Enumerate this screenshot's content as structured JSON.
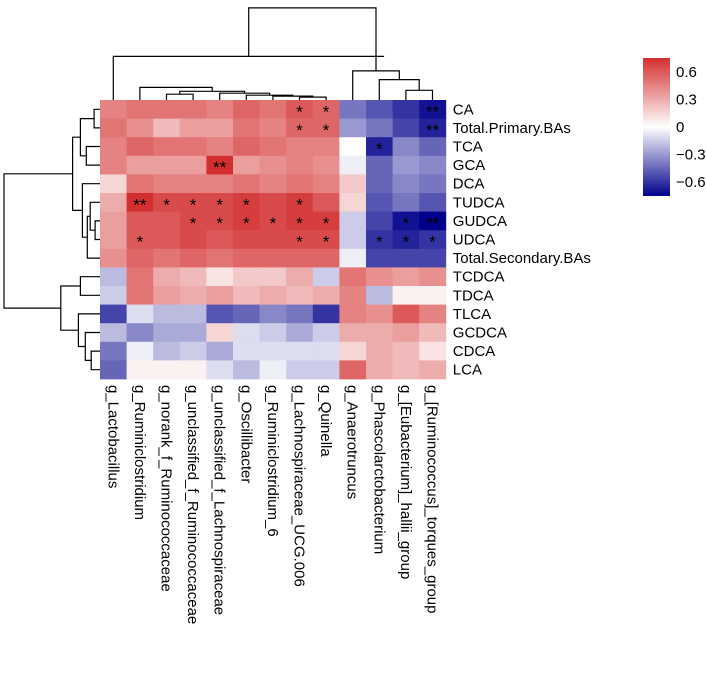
{
  "chart_data": {
    "type": "heatmap",
    "title": "",
    "rows": [
      "CA",
      "Total.Primary.BAs",
      "TCA",
      "GCA",
      "DCA",
      "TUDCA",
      "GUDCA",
      "UDCA",
      "Total.Secondary.BAs",
      "TCDCA",
      "TDCA",
      "TLCA",
      "GCDCA",
      "CDCA",
      "LCA"
    ],
    "columns": [
      "g_Lactobacillus",
      "g_Ruminiclostridium",
      "g_norank_f_Ruminococcaceae",
      "g_unclassified_f_Ruminococcaceae",
      "g_unclassified_f_Lachnospiraceae",
      "g_Oscillibacter",
      "g_Ruminiclostridium_6",
      "g_Lachnospiraceae_UCG.006",
      "g_Quinella",
      "g_Anaerotruncus",
      "g_Phascolarctobacterium",
      "g_[Eubacterium]_hallii_group",
      "g_[Ruminococcus]_torques_group"
    ],
    "values": [
      [
        0.45,
        0.5,
        0.5,
        0.5,
        0.45,
        0.55,
        0.5,
        0.6,
        0.55,
        -0.4,
        -0.5,
        -0.6,
        -0.7
      ],
      [
        0.5,
        0.4,
        0.25,
        0.35,
        0.35,
        0.5,
        0.45,
        0.55,
        0.55,
        -0.3,
        -0.4,
        -0.55,
        -0.65
      ],
      [
        0.45,
        0.55,
        0.5,
        0.5,
        0.45,
        0.55,
        0.5,
        0.45,
        0.45,
        0.0,
        -0.65,
        -0.35,
        -0.45
      ],
      [
        0.45,
        0.35,
        0.35,
        0.35,
        0.75,
        0.35,
        0.4,
        0.45,
        0.4,
        -0.05,
        -0.45,
        -0.3,
        -0.35
      ],
      [
        0.15,
        0.5,
        0.45,
        0.45,
        0.45,
        0.5,
        0.45,
        0.5,
        0.45,
        0.2,
        -0.45,
        -0.35,
        -0.4
      ],
      [
        0.3,
        0.75,
        0.65,
        0.65,
        0.65,
        0.7,
        0.65,
        0.7,
        0.6,
        0.15,
        -0.5,
        -0.4,
        -0.5
      ],
      [
        0.35,
        0.6,
        0.6,
        0.65,
        0.65,
        0.7,
        0.65,
        0.7,
        0.7,
        -0.15,
        -0.55,
        -0.7,
        -0.75
      ],
      [
        0.35,
        0.6,
        0.6,
        0.65,
        0.6,
        0.65,
        0.65,
        0.65,
        0.65,
        -0.15,
        -0.6,
        -0.65,
        -0.6
      ],
      [
        0.4,
        0.55,
        0.5,
        0.55,
        0.5,
        0.55,
        0.55,
        0.55,
        0.55,
        -0.05,
        -0.55,
        -0.55,
        -0.55
      ],
      [
        -0.2,
        0.5,
        0.3,
        0.25,
        0.1,
        0.2,
        0.2,
        0.3,
        -0.15,
        0.5,
        0.4,
        0.35,
        0.4
      ],
      [
        -0.15,
        0.5,
        0.35,
        0.3,
        0.35,
        0.25,
        0.3,
        0.25,
        0.3,
        0.45,
        -0.2,
        0.05,
        0.05
      ],
      [
        -0.55,
        -0.1,
        -0.2,
        -0.2,
        -0.5,
        -0.45,
        -0.35,
        -0.4,
        -0.6,
        0.45,
        0.4,
        0.6,
        0.45
      ],
      [
        -0.2,
        -0.35,
        -0.25,
        -0.25,
        0.15,
        -0.1,
        -0.15,
        -0.25,
        -0.15,
        0.3,
        0.3,
        0.35,
        0.25
      ],
      [
        -0.4,
        -0.05,
        -0.2,
        -0.15,
        -0.25,
        -0.1,
        -0.1,
        -0.1,
        -0.1,
        0.15,
        0.3,
        0.25,
        0.1
      ],
      [
        -0.45,
        0.05,
        0.05,
        0.05,
        -0.1,
        -0.2,
        -0.05,
        -0.15,
        -0.15,
        0.55,
        0.3,
        0.25,
        0.3
      ]
    ],
    "significance": [
      [
        "",
        "",
        "",
        "",
        "",
        "",
        "",
        "*",
        "*",
        "",
        "",
        "",
        "**"
      ],
      [
        "",
        "",
        "",
        "",
        "",
        "",
        "",
        "*",
        "*",
        "",
        "",
        "",
        "**"
      ],
      [
        "",
        "",
        "",
        "",
        "",
        "",
        "",
        "",
        "",
        "",
        "*",
        "",
        ""
      ],
      [
        "",
        "",
        "",
        "",
        "**",
        "",
        "",
        "",
        "",
        "",
        "",
        "",
        ""
      ],
      [
        "",
        "",
        "",
        "",
        "",
        "",
        "",
        "",
        "",
        "",
        "",
        "",
        ""
      ],
      [
        "",
        "**",
        "*",
        "*",
        "*",
        "*",
        "",
        "*",
        "",
        "",
        "",
        "",
        ""
      ],
      [
        "",
        "",
        "",
        "*",
        "*",
        "*",
        "*",
        "*",
        "*",
        "",
        "",
        "*",
        "**"
      ],
      [
        "",
        "*",
        "",
        "",
        "",
        "",
        "",
        "*",
        "*",
        "",
        "*",
        "*",
        "*"
      ],
      [
        "",
        "",
        "",
        "",
        "",
        "",
        "",
        "",
        "",
        "",
        "",
        "",
        ""
      ],
      [
        "",
        "",
        "",
        "",
        "",
        "",
        "",
        "",
        "",
        "",
        "",
        "",
        ""
      ],
      [
        "",
        "",
        "",
        "",
        "",
        "",
        "",
        "",
        "",
        "",
        "",
        "",
        ""
      ],
      [
        "",
        "",
        "",
        "",
        "",
        "",
        "",
        "",
        "",
        "",
        "",
        "",
        ""
      ],
      [
        "",
        "",
        "",
        "",
        "",
        "",
        "",
        "",
        "",
        "",
        "",
        "",
        ""
      ],
      [
        "",
        "",
        "",
        "",
        "",
        "",
        "",
        "",
        "",
        "",
        "",
        "",
        ""
      ],
      [
        "",
        "",
        "",
        "",
        "",
        "",
        "",
        "",
        "",
        "",
        "",
        "",
        ""
      ]
    ],
    "colorbar": {
      "ticks": [
        0.6,
        0.3,
        0,
        -0.3,
        -0.6
      ],
      "tick_labels": [
        "0.6",
        "0.3",
        "0",
        "−0.3",
        "−0.6"
      ],
      "range": [
        -0.75,
        0.75
      ]
    },
    "colors": {
      "low": "#00008b",
      "mid": "#ffffff",
      "high": "#d32f2f"
    },
    "row_dendrogram_order": [
      "CA",
      "Total.Primary.BAs",
      "TCA",
      "GCA",
      "DCA",
      "TUDCA",
      "GUDCA",
      "UDCA",
      "Total.Secondary.BAs",
      "TCDCA",
      "TDCA",
      "TLCA",
      "GCDCA",
      "CDCA",
      "LCA"
    ],
    "column_dendrogram_order": [
      "g_Lactobacillus",
      "g_Ruminiclostridium",
      "g_norank_f_Ruminococcaceae",
      "g_unclassified_f_Ruminococcaceae",
      "g_unclassified_f_Lachnospiraceae",
      "g_Oscillibacter",
      "g_Ruminiclostridium_6",
      "g_Lachnospiraceae_UCG.006",
      "g_Quinella",
      "g_Anaerotruncus",
      "g_Phascolarctobacterium",
      "g_[Eubacterium]_hallii_group",
      "g_[Ruminococcus]_torques_group"
    ]
  }
}
